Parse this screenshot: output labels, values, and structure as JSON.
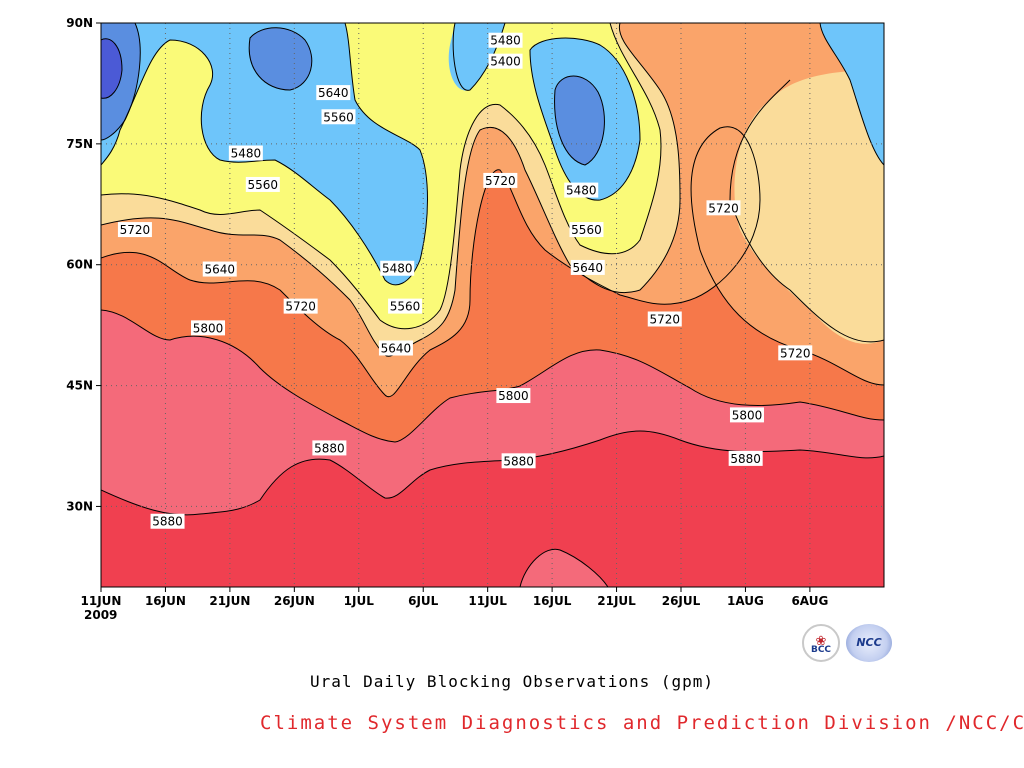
{
  "chart_data": {
    "type": "contour",
    "title": "Ural Daily Blocking Observations (gpm)",
    "x_tick_labels": [
      "11JUN",
      "16JUN",
      "21JUN",
      "26JUN",
      "1JUL",
      "6JUL",
      "11JUL",
      "16JUL",
      "21JUL",
      "26JUL",
      "1AUG",
      "6AUG"
    ],
    "x_year_label": "2009",
    "y_tick_labels": [
      "30N",
      "45N",
      "60N",
      "75N",
      "90N"
    ],
    "y_ticks_deg": [
      30,
      45,
      60,
      75,
      90
    ],
    "x_range_days": [
      0,
      60
    ],
    "y_range_deg": [
      20,
      90
    ],
    "grid": true,
    "contour_levels": [
      5400,
      5480,
      5560,
      5640,
      5720,
      5800,
      5880
    ],
    "fill_colors": {
      "below_5400": "#4b5ad6",
      "5400_5480": "#5a8ee0",
      "5480_5560": "#6ec5fa",
      "5560_5640": "#fafa78",
      "5640_5720": "#fadc9a",
      "5720_5800": "#faa46a",
      "5800_5880": "#f6784a",
      "5880_5960": "#f46a7a",
      "above_5960": "#f04050"
    },
    "contour_labels": [
      {
        "text": "5480",
        "x_day": 31,
        "y_deg": 87.8
      },
      {
        "text": "5400",
        "x_day": 31,
        "y_deg": 85.2
      },
      {
        "text": "5640",
        "x_day": 17.8,
        "y_deg": 81.3
      },
      {
        "text": "5560",
        "x_day": 18.2,
        "y_deg": 78.3
      },
      {
        "text": "5480",
        "x_day": 11.1,
        "y_deg": 73.8
      },
      {
        "text": "5560",
        "x_day": 12.4,
        "y_deg": 69.9
      },
      {
        "text": "5720",
        "x_day": 30.6,
        "y_deg": 70.4
      },
      {
        "text": "5480",
        "x_day": 36.8,
        "y_deg": 69.2
      },
      {
        "text": "5720",
        "x_day": 2.6,
        "y_deg": 64.3
      },
      {
        "text": "5560",
        "x_day": 37.2,
        "y_deg": 64.3
      },
      {
        "text": "5720",
        "x_day": 47.7,
        "y_deg": 67.0
      },
      {
        "text": "5640",
        "x_day": 9.1,
        "y_deg": 59.4
      },
      {
        "text": "5480",
        "x_day": 22.7,
        "y_deg": 59.5
      },
      {
        "text": "5640",
        "x_day": 37.3,
        "y_deg": 59.6
      },
      {
        "text": "5720",
        "x_day": 15.3,
        "y_deg": 54.8
      },
      {
        "text": "5560",
        "x_day": 23.3,
        "y_deg": 54.8
      },
      {
        "text": "5720",
        "x_day": 43.2,
        "y_deg": 53.2
      },
      {
        "text": "5800",
        "x_day": 8.2,
        "y_deg": 52.1
      },
      {
        "text": "5640",
        "x_day": 22.6,
        "y_deg": 49.6
      },
      {
        "text": "5720",
        "x_day": 53.2,
        "y_deg": 49.0
      },
      {
        "text": "5800",
        "x_day": 31.6,
        "y_deg": 43.7
      },
      {
        "text": "5800",
        "x_day": 49.5,
        "y_deg": 41.3
      },
      {
        "text": "5880",
        "x_day": 17.5,
        "y_deg": 37.2
      },
      {
        "text": "5880",
        "x_day": 32.0,
        "y_deg": 35.6
      },
      {
        "text": "5880",
        "x_day": 49.4,
        "y_deg": 35.9
      },
      {
        "text": "5880",
        "x_day": 5.1,
        "y_deg": 28.1
      }
    ]
  },
  "captions": {
    "title": "Ural Daily Blocking Observations (gpm)",
    "credit": "Climate System Diagnostics and Prediction Division /NCC/CMA",
    "credit_color": "#e0282c"
  },
  "logos": {
    "left_mark": "BCC",
    "right_mark": "NCC"
  }
}
